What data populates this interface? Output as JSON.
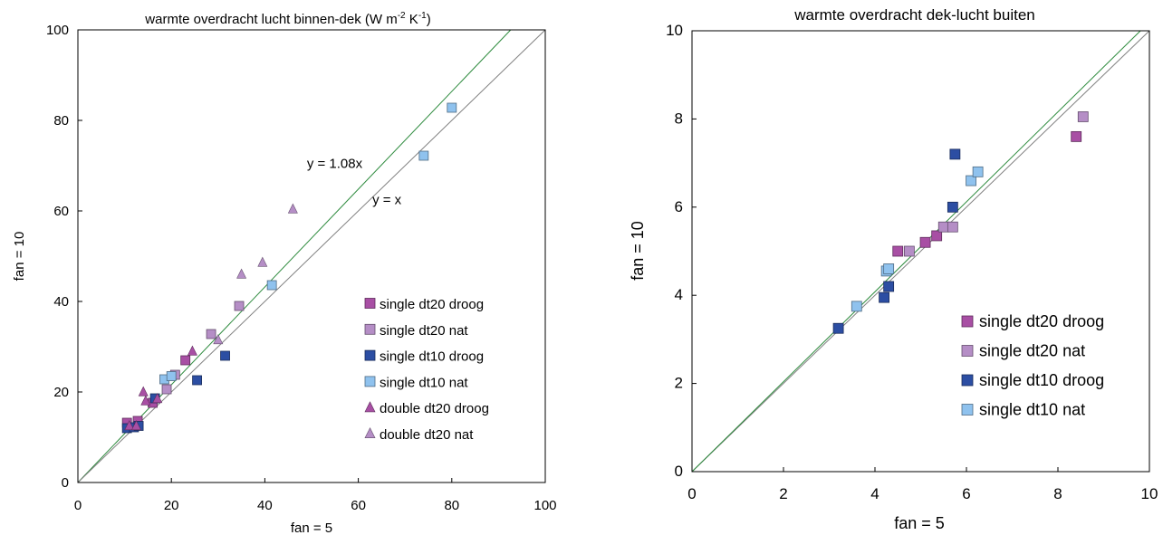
{
  "colors": {
    "single_dt20_droog": "#a84fa4",
    "single_dt20_nat": "#b58ec6",
    "single_dt10_droog": "#2c4ea3",
    "single_dt10_nat": "#8fc2ee",
    "double_dt20_droog": "#a84fa4",
    "double_dt20_nat": "#b58ec6",
    "line_fit": "#2e8b3e",
    "line_identity": "#808080"
  },
  "chart_data": [
    {
      "type": "scatter",
      "title_main": "warmte overdracht lucht binnen-dek (W  m",
      "title_exp1": "-2",
      "title_mid": " K",
      "title_exp2": "-1",
      "title_end": ")",
      "xlabel": "fan = 5",
      "ylabel": "fan = 10",
      "xlim": [
        0,
        100
      ],
      "ylim": [
        0,
        100
      ],
      "xticks": [
        "0",
        "20",
        "40",
        "60",
        "80",
        "100"
      ],
      "yticks": [
        "0",
        "20",
        "40",
        "60",
        "80",
        "100"
      ],
      "grid": false,
      "legend_position": "bottom-right",
      "series": [
        {
          "name": "single dt20 droog",
          "marker": "square",
          "color_key": "single_dt20_droog",
          "points": [
            [
              10.5,
              13.2
            ],
            [
              12.8,
              13.6
            ],
            [
              16,
              17.6
            ],
            [
              23,
              27
            ]
          ]
        },
        {
          "name": "single dt20 nat",
          "marker": "square",
          "color_key": "single_dt20_nat",
          "points": [
            [
              19,
              20.6
            ],
            [
              20.8,
              23.8
            ],
            [
              28.5,
              32.8
            ],
            [
              34.5,
              39
            ]
          ]
        },
        {
          "name": "single dt10 droog",
          "marker": "square",
          "color_key": "single_dt10_droog",
          "points": [
            [
              10.5,
              12
            ],
            [
              12,
              12.2
            ],
            [
              13,
              12.5
            ],
            [
              16.5,
              18.6
            ],
            [
              25.5,
              22.6
            ],
            [
              31.5,
              28
            ]
          ]
        },
        {
          "name": "single dt10 nat",
          "marker": "square",
          "color_key": "single_dt10_nat",
          "points": [
            [
              18.5,
              22.8
            ],
            [
              20,
              23.5
            ],
            [
              41.5,
              43.6
            ],
            [
              74,
              72.2
            ],
            [
              80,
              82.8
            ]
          ]
        },
        {
          "name": "double dt20 droog",
          "marker": "triangle",
          "color_key": "double_dt20_droog",
          "points": [
            [
              11,
              12.5
            ],
            [
              12.5,
              12.5
            ],
            [
              14,
              20
            ],
            [
              14.5,
              18
            ],
            [
              17,
              18.5
            ],
            [
              24.5,
              29
            ]
          ]
        },
        {
          "name": "double dt20 nat",
          "marker": "triangle",
          "color_key": "double_dt20_nat",
          "points": [
            [
              30,
              31.5
            ],
            [
              35,
              46
            ],
            [
              39.5,
              48.6
            ],
            [
              46,
              60.4
            ]
          ]
        }
      ],
      "lines": [
        {
          "label": "y = 1.08x",
          "slope": 1.08,
          "color_key": "line_fit",
          "label_at": [
            49,
            69.5
          ]
        },
        {
          "label": "y = x",
          "slope": 1.0,
          "color_key": "line_identity",
          "label_at": [
            63,
            61.5
          ]
        }
      ]
    },
    {
      "type": "scatter",
      "title": "warmte overdracht dek-lucht buiten",
      "xlabel": "fan = 5",
      "ylabel": "fan = 10",
      "xlim": [
        0,
        10
      ],
      "ylim": [
        0,
        10
      ],
      "xticks": [
        "0",
        "2",
        "4",
        "6",
        "8",
        "10"
      ],
      "yticks": [
        "0",
        "2",
        "4",
        "6",
        "8",
        "10"
      ],
      "grid": false,
      "legend_position": "bottom-right",
      "series": [
        {
          "name": "single dt20 droog",
          "marker": "square",
          "color_key": "single_dt20_droog",
          "points": [
            [
              4.5,
              5.0
            ],
            [
              5.1,
              5.2
            ],
            [
              5.35,
              5.35
            ],
            [
              8.4,
              7.6
            ]
          ]
        },
        {
          "name": "single dt20 nat",
          "marker": "square",
          "color_key": "single_dt20_nat",
          "points": [
            [
              4.75,
              5.0
            ],
            [
              5.5,
              5.55
            ],
            [
              5.7,
              5.55
            ],
            [
              8.55,
              8.05
            ]
          ]
        },
        {
          "name": "single dt10 droog",
          "marker": "square",
          "color_key": "single_dt10_droog",
          "points": [
            [
              3.2,
              3.25
            ],
            [
              4.2,
              3.95
            ],
            [
              4.3,
              4.2
            ],
            [
              5.7,
              6.0
            ],
            [
              5.75,
              7.2
            ]
          ]
        },
        {
          "name": "single dt10 nat",
          "marker": "square",
          "color_key": "single_dt10_nat",
          "points": [
            [
              3.6,
              3.75
            ],
            [
              4.25,
              4.55
            ],
            [
              4.3,
              4.6
            ],
            [
              6.1,
              6.6
            ],
            [
              6.25,
              6.8
            ]
          ]
        }
      ],
      "lines": [
        {
          "slope": 1.0,
          "color_key": "line_identity"
        },
        {
          "slope": 1.02,
          "color_key": "line_fit"
        }
      ]
    }
  ]
}
